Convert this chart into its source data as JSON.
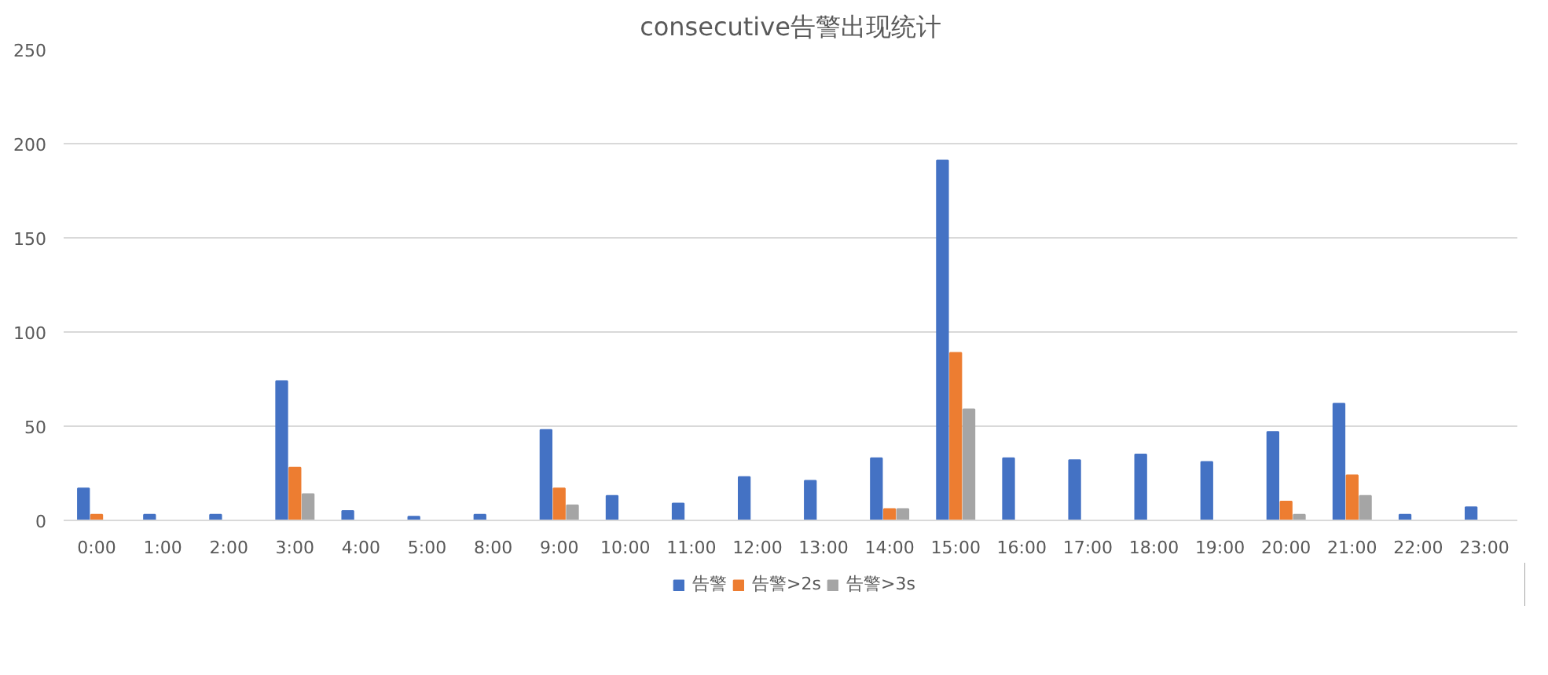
{
  "chart_data": {
    "type": "bar",
    "title": "consecutive告警出现统计",
    "categories": [
      "0:00",
      "1:00",
      "2:00",
      "3:00",
      "4:00",
      "5:00",
      "8:00",
      "9:00",
      "10:00",
      "11:00",
      "12:00",
      "13:00",
      "14:00",
      "15:00",
      "16:00",
      "17:00",
      "18:00",
      "19:00",
      "20:00",
      "21:00",
      "22:00",
      "23:00"
    ],
    "series": [
      {
        "name": "告警",
        "color": "#4472c4",
        "values": [
          17,
          3,
          3,
          74,
          5,
          2,
          3,
          48,
          13,
          9,
          23,
          21,
          33,
          191,
          33,
          32,
          35,
          31,
          47,
          62,
          3,
          7
        ]
      },
      {
        "name": "告警>2s",
        "color": "#ed7d31",
        "values": [
          3,
          null,
          null,
          28,
          null,
          null,
          null,
          17,
          null,
          null,
          null,
          null,
          6,
          89,
          null,
          null,
          null,
          null,
          10,
          24,
          null,
          null
        ]
      },
      {
        "name": "告警>3s",
        "color": "#a5a5a5",
        "values": [
          null,
          null,
          null,
          14,
          null,
          null,
          null,
          8,
          null,
          null,
          null,
          null,
          6,
          59,
          null,
          null,
          null,
          null,
          3,
          13,
          null,
          null
        ]
      }
    ],
    "ylim": [
      0,
      250
    ],
    "yticks": [
      0,
      50,
      100,
      150,
      200,
      250
    ],
    "grid": "y",
    "legend": "bottom"
  }
}
